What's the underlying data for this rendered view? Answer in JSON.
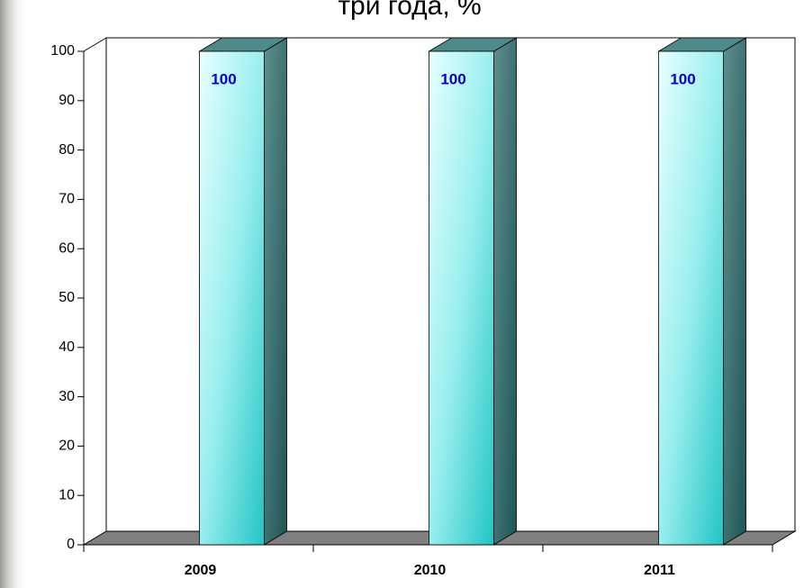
{
  "chart_data": {
    "type": "bar3d",
    "title": "три года, %",
    "categories": [
      "2009",
      "2010",
      "2011"
    ],
    "values": [
      100,
      100,
      100
    ],
    "color": "#33cccc",
    "label_color": "#0000cc",
    "ylim": [
      0,
      100
    ],
    "yticks": [
      0,
      10,
      20,
      30,
      40,
      50,
      60,
      70,
      80,
      90,
      100
    ],
    "grid": false
  }
}
